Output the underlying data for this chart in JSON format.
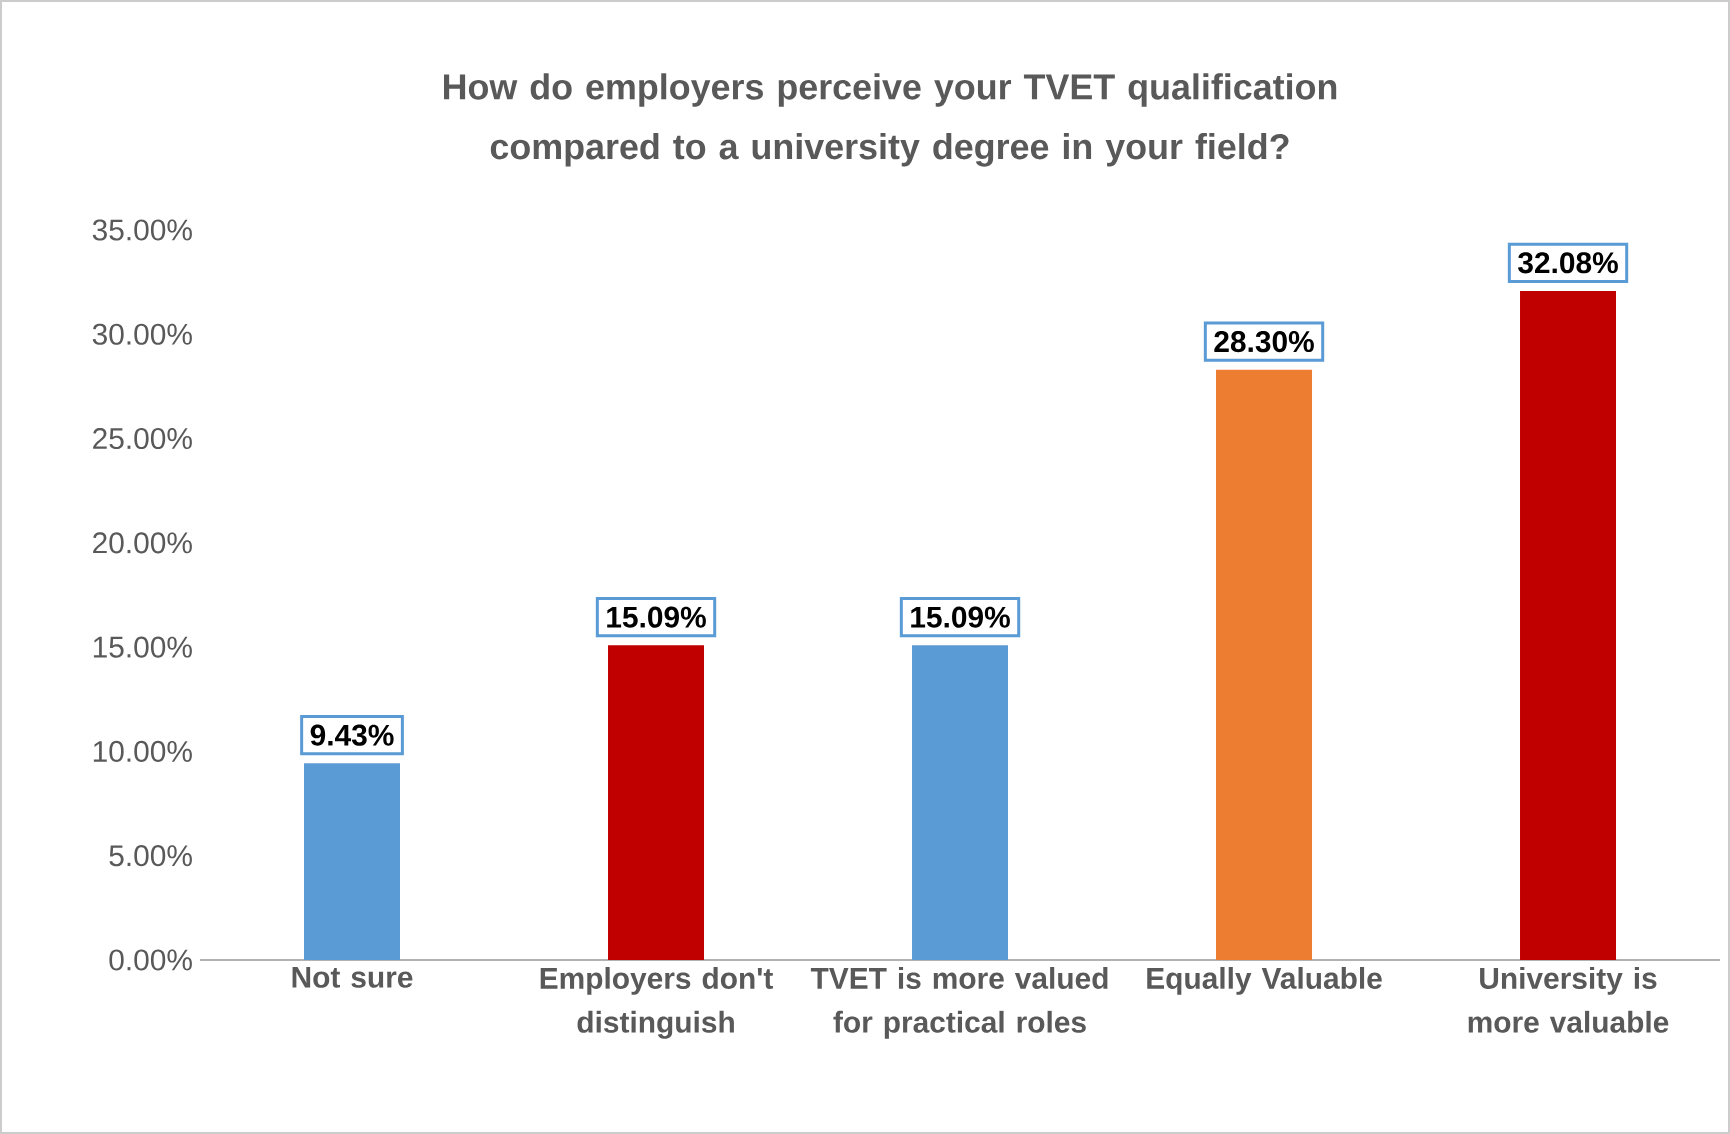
{
  "chart_data": {
    "type": "bar",
    "title": "How do employers perceive your TVET qualification compared to a university degree in your field?",
    "categories": [
      "Not sure",
      "Employers don't distinguish",
      "TVET is more valued for practical roles",
      "Equally Valuable",
      "University is more valuable"
    ],
    "values": [
      9.43,
      15.09,
      15.09,
      28.3,
      32.08
    ],
    "colors": [
      "#5b9bd5",
      "#c00000",
      "#5b9bd5",
      "#ed7d31",
      "#c00000"
    ],
    "value_labels": [
      "9.43%",
      "15.09%",
      "15.09%",
      "28.30%",
      "32.08%"
    ],
    "ylim": [
      0,
      35
    ],
    "yticks": [
      {
        "value": 0,
        "label": "0.00%"
      },
      {
        "value": 5,
        "label": "5.00%"
      },
      {
        "value": 10,
        "label": "10.00%"
      },
      {
        "value": 15,
        "label": "15.00%"
      },
      {
        "value": 20,
        "label": "20.00%"
      },
      {
        "value": 25,
        "label": "25.00%"
      },
      {
        "value": 30,
        "label": "30.00%"
      },
      {
        "value": 35,
        "label": "35.00%"
      }
    ],
    "grid": false
  }
}
